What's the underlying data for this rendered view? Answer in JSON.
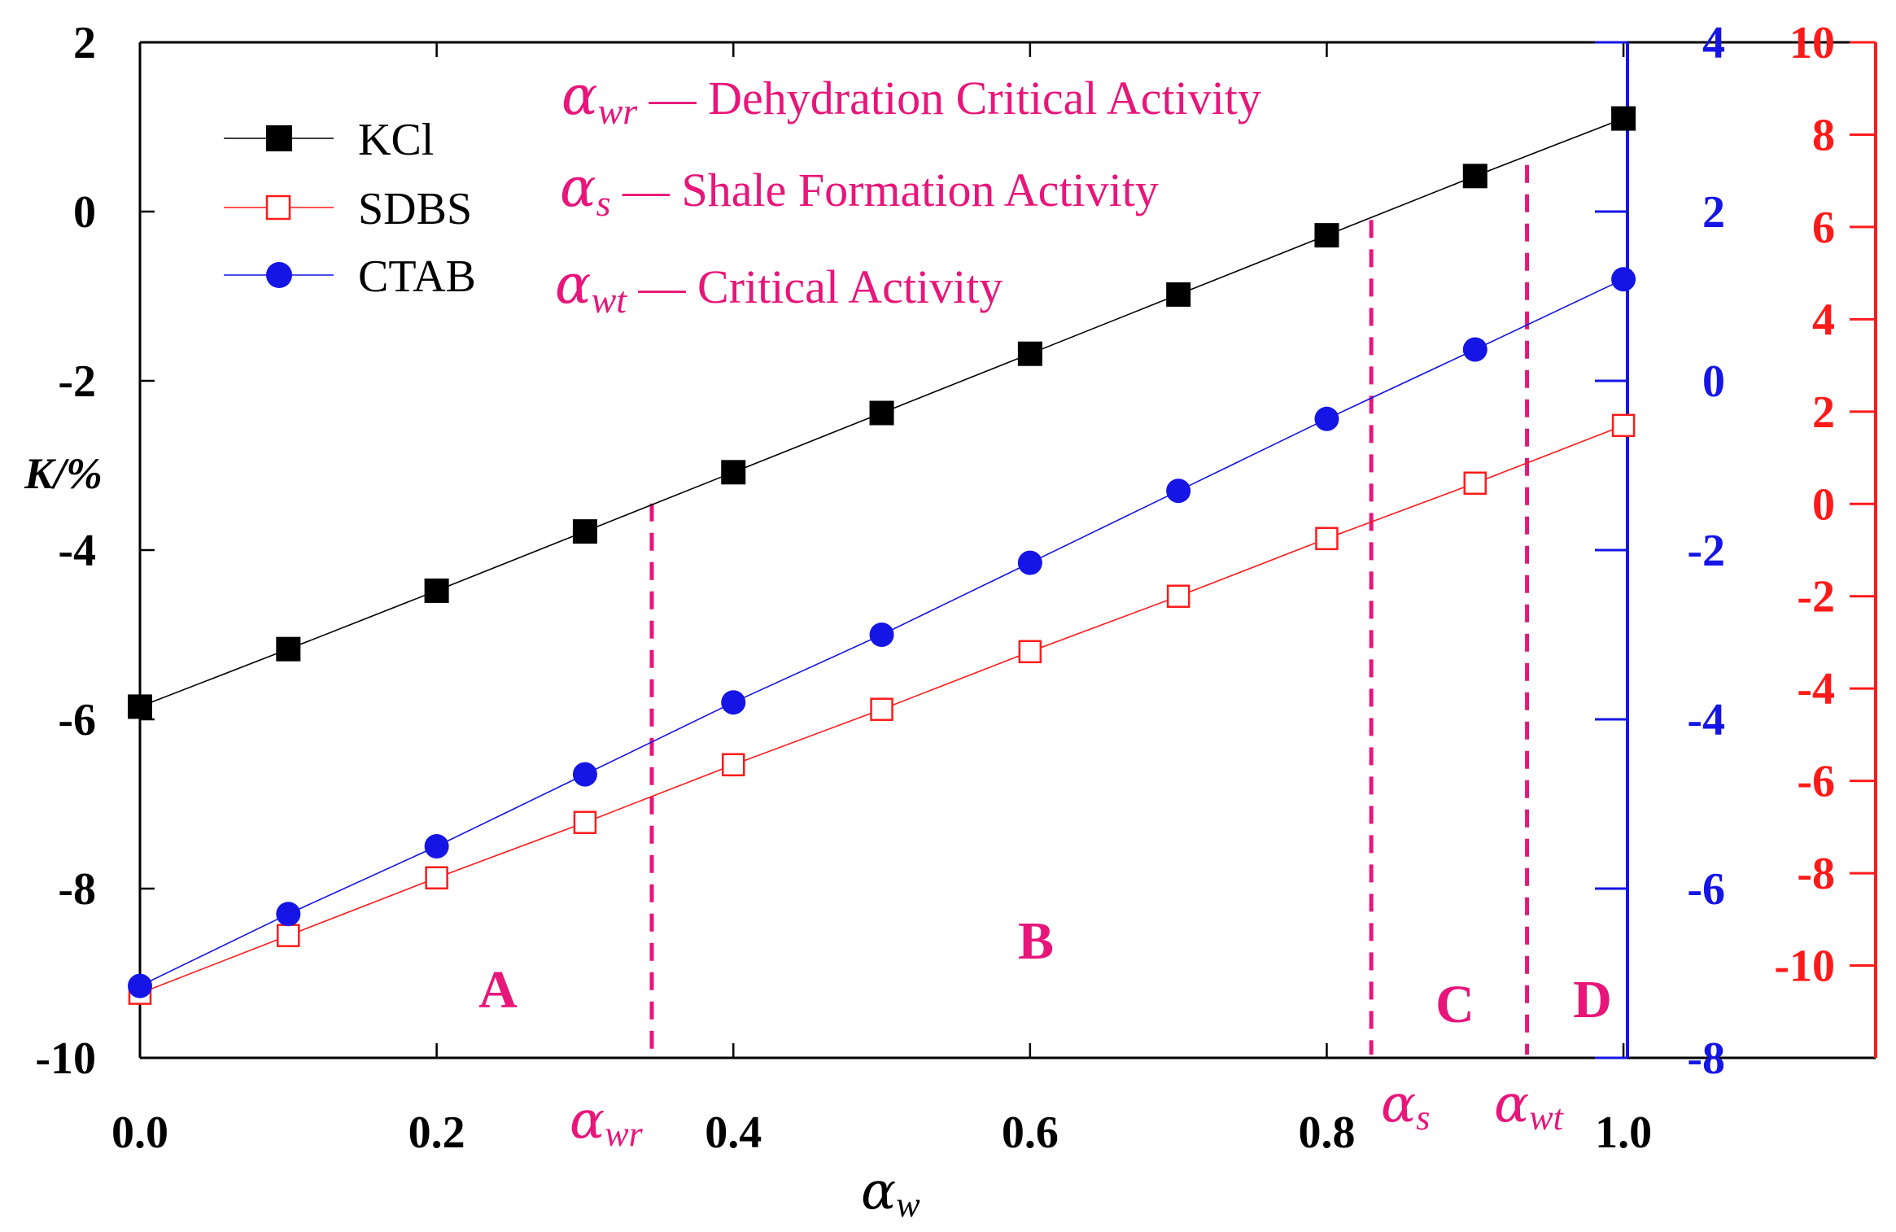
{
  "chart_data": {
    "type": "line",
    "title": "",
    "xlabel": {
      "symbol": "α",
      "sub": "w"
    },
    "ylabel": "K/%",
    "x": [
      0.0,
      0.1,
      0.2,
      0.3,
      0.4,
      0.5,
      0.6,
      0.7,
      0.8,
      0.9,
      1.0
    ],
    "xlim": [
      0.0,
      1.17
    ],
    "x_ticks": [
      0.0,
      0.2,
      0.4,
      0.6,
      0.8,
      1.0
    ],
    "x_tick_labels": [
      "0.0",
      "0.2",
      "0.4",
      "0.6",
      "0.8",
      "1.0"
    ],
    "axes": {
      "left": {
        "ylim": [
          -10,
          2
        ],
        "ticks": [
          -10,
          -8,
          -6,
          -4,
          -2,
          0,
          2
        ],
        "tick_labels": [
          "-10",
          "-8",
          "-6",
          "-4",
          "-2",
          "0",
          "2"
        ],
        "color": "#000000"
      },
      "right_inner": {
        "ylim": [
          -8,
          4
        ],
        "ticks": [
          -8,
          -6,
          -4,
          -2,
          0,
          2,
          4
        ],
        "tick_labels": [
          "-8",
          "-6",
          "-4",
          "-2",
          "0",
          "2",
          "4"
        ],
        "color": "#1515e6"
      },
      "right_outer": {
        "ylim": [
          -12,
          10
        ],
        "ticks": [
          -10,
          -8,
          -6,
          -4,
          -2,
          0,
          2,
          4,
          6,
          8,
          10
        ],
        "tick_labels": [
          "-10",
          "-8",
          "-6",
          "-4",
          "-2",
          "0",
          "2",
          "4",
          "6",
          "8",
          "10"
        ],
        "color": "#ff1a1a"
      }
    },
    "series": [
      {
        "name": "KCl",
        "axis": "left",
        "color": "#000000",
        "marker": "filled-square",
        "values": [
          -5.85,
          -5.17,
          -4.48,
          -3.78,
          -3.08,
          -2.38,
          -1.68,
          -0.98,
          -0.28,
          0.42,
          1.1
        ]
      },
      {
        "name": "SDBS",
        "axis": "right_outer",
        "color": "#ff1a1a",
        "marker": "open-square",
        "values": [
          -10.6,
          -9.35,
          -8.1,
          -6.9,
          -5.65,
          -4.45,
          -3.2,
          -2.0,
          -0.75,
          0.45,
          1.7
        ]
      },
      {
        "name": "CTAB",
        "axis": "right_inner",
        "color": "#1515e6",
        "marker": "filled-circle",
        "values": [
          -7.15,
          -6.3,
          -5.5,
          -4.65,
          -3.8,
          -3.0,
          -2.15,
          -1.3,
          -0.45,
          0.37,
          1.2
        ]
      }
    ],
    "critical_lines": [
      {
        "id": "awr",
        "x": 0.345,
        "y_top_left_axis": -3.45,
        "symbol": "α",
        "sub": "wr"
      },
      {
        "id": "as",
        "x": 0.83,
        "y_top_left_axis": -0.1,
        "symbol": "α",
        "sub": "s"
      },
      {
        "id": "awt",
        "x": 0.935,
        "y_top_left_axis": 0.55,
        "symbol": "α",
        "sub": "wt"
      }
    ],
    "annotations": [
      {
        "symbol": "α",
        "sub": "wr",
        "text": " — Dehydration Critical Activity"
      },
      {
        "symbol": "α",
        "sub": "s",
        "text": " — Shale Formation Activity"
      },
      {
        "symbol": "α",
        "sub": "wt",
        "text": " — Critical Activity"
      }
    ],
    "regions": [
      "A",
      "B",
      "C",
      "D"
    ],
    "legend_position": "top-left",
    "grid": false
  }
}
